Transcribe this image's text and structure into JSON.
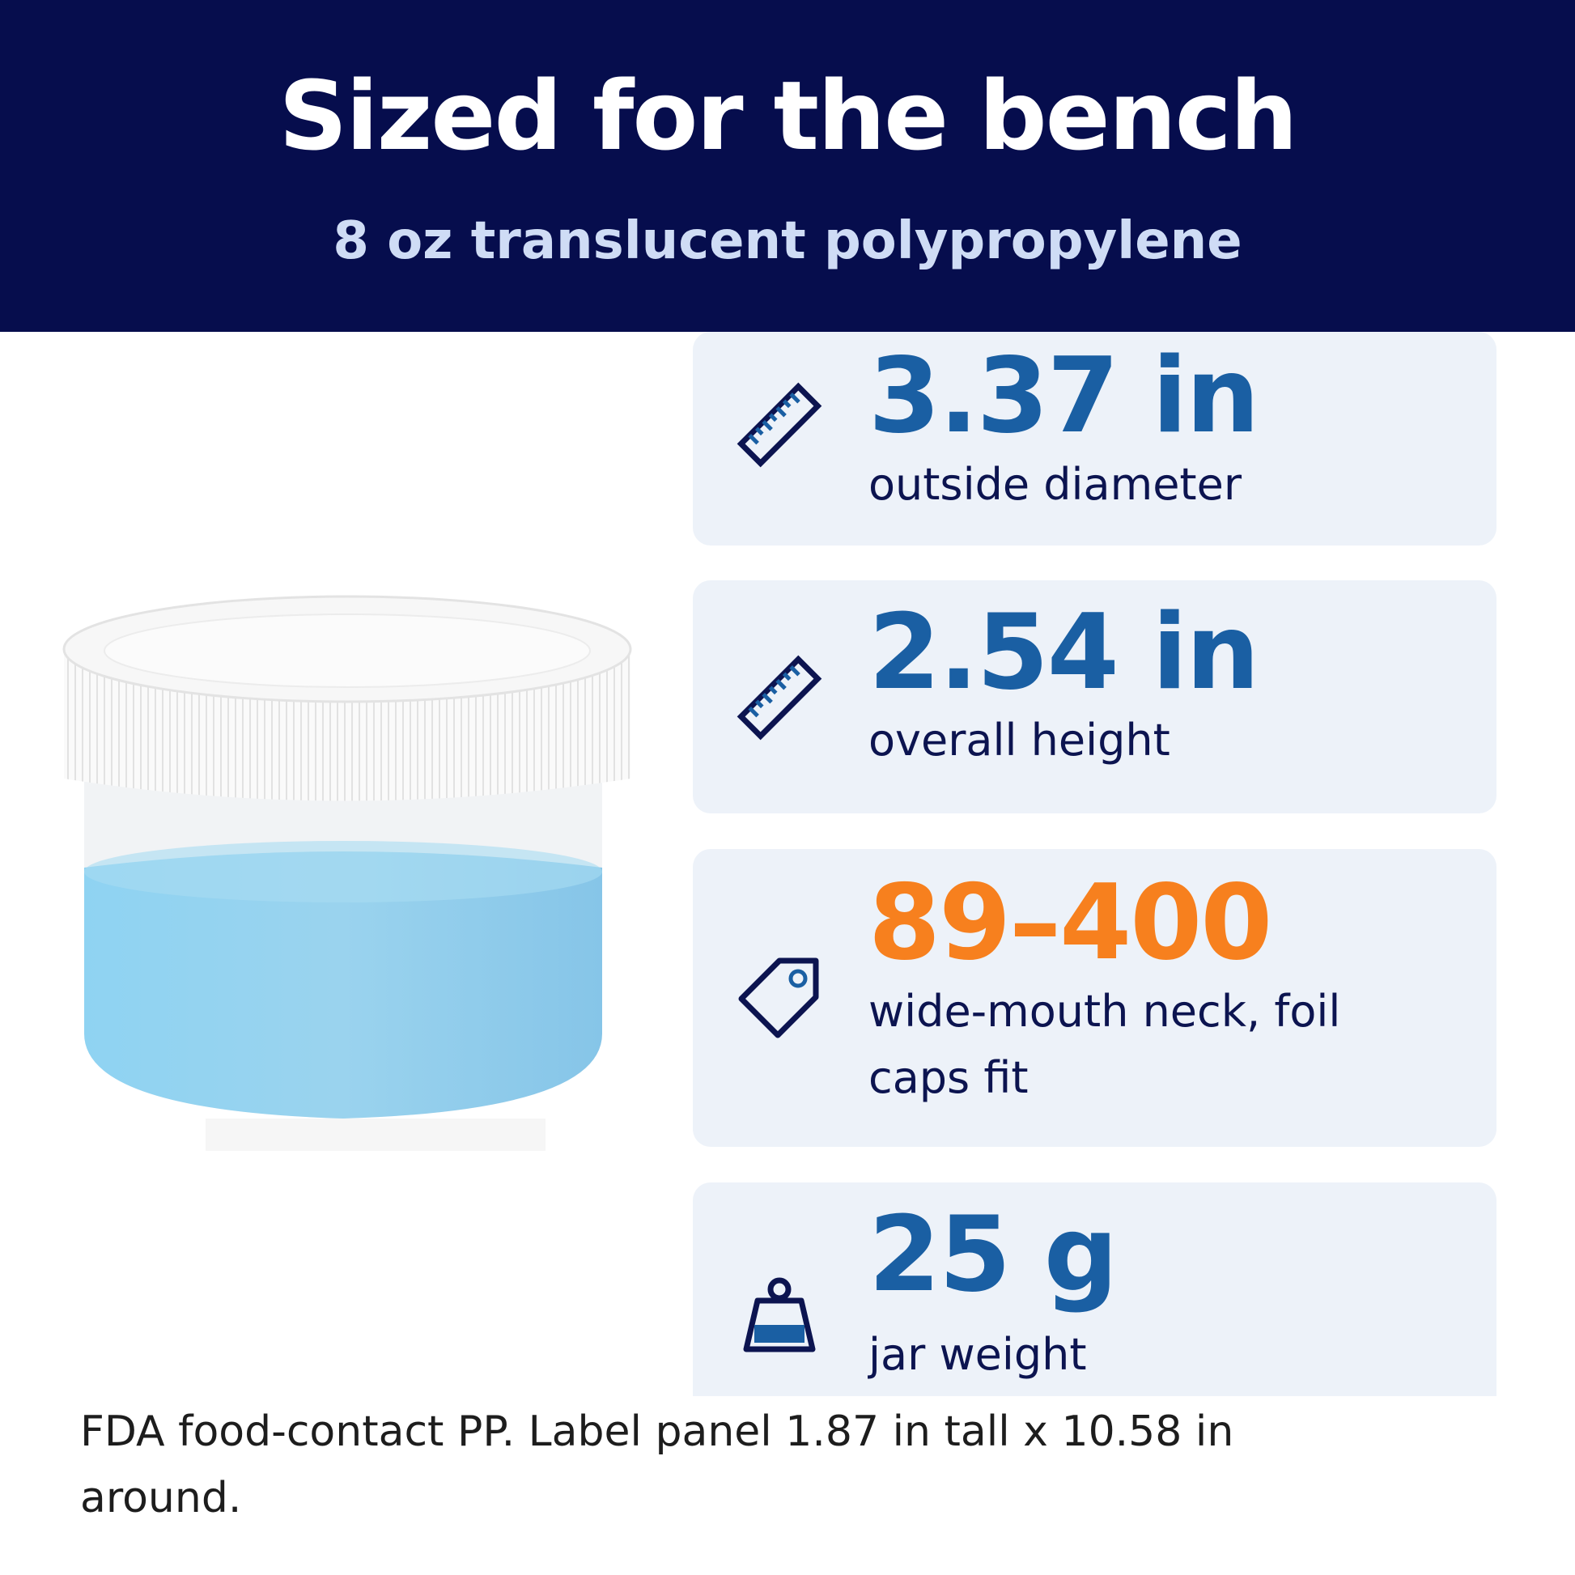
{
  "header": {
    "title": "Sized for the bench",
    "subtitle": "8 oz translucent polypropylene"
  },
  "specs": [
    {
      "value": "3.37 in",
      "label": "outside diameter",
      "color": "#1a5fa3"
    },
    {
      "value": "2.54 in",
      "label": "overall height",
      "color": "#1a5fa3"
    },
    {
      "value": "89–400",
      "label": "wide-mouth neck, foil caps fit",
      "color": "#f7801e"
    },
    {
      "value": "25 g",
      "label": "jar weight",
      "color": "#1a5fa3"
    }
  ],
  "footer": "FDA food-contact PP. Label panel 1.87 in tall x 10.58 in around."
}
